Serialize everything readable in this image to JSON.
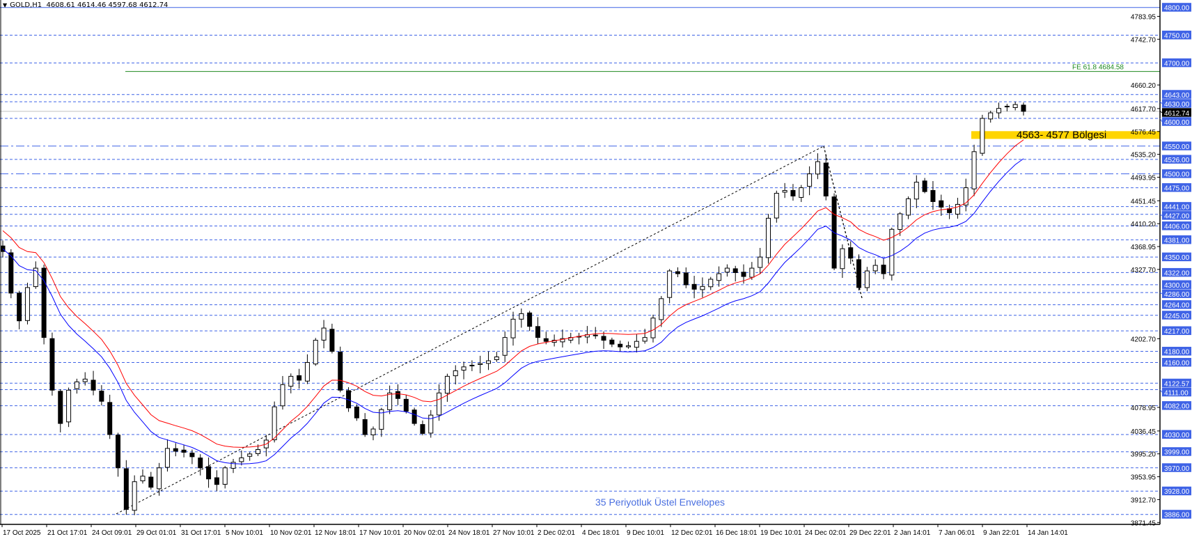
{
  "header": {
    "symbol": "GOLD,H1",
    "ohlc": "4608.61 4614.46 4597.68 4612.74",
    "menu_icon": "triangle-down-icon"
  },
  "colors": {
    "level_line": "#3f63e6",
    "label_bg": "#3f63e6",
    "label_text": "#ffffff",
    "ema_upper": "#ff0000",
    "ema_lower": "#0000ff",
    "fib": "#1f8a1f",
    "zone": "#ffd500",
    "current_price_bg": "#000000",
    "indicator_text": "#4a6fe0"
  },
  "chart_data": {
    "type": "candlestick",
    "symbol": "GOLD",
    "timeframe": "H1",
    "ylim": [
      3871.45,
      4800
    ],
    "grid": false,
    "x_tick_labels": [
      "17 Oct 2025",
      "21 Oct 17:01",
      "24 Oct 09:01",
      "29 Oct 01:01",
      "31 Oct 17:01",
      "5 Nov 10:01",
      "10 Nov 02:01",
      "12 Nov 18:01",
      "17 Nov 10:01",
      "20 Nov 02:01",
      "24 Nov 18:01",
      "27 Nov 10:01",
      "2 Dec 02:01",
      "4 Dec 18:01",
      "9 Dec 10:01",
      "12 Dec 02:01",
      "16 Dec 18:01",
      "19 Dec 10:01",
      "24 Dec 02:01",
      "29 Dec 22:01",
      "2 Jan 14:01",
      "7 Jan 06:01",
      "9 Jan 22:01",
      "14 Jan 14:01"
    ],
    "y_tick_labels": [
      "4783.95",
      "4742.70",
      "4660.20",
      "4617.70",
      "4576.45",
      "4535.20",
      "4493.95",
      "4451.45",
      "4410.20",
      "4368.95",
      "4327.70",
      "4202.70",
      "4078.95",
      "4036.45",
      "3995.20",
      "3953.95",
      "3912.70",
      "3871.45"
    ],
    "approx_closes": [
      4360,
      4285,
      4235,
      4295,
      4330,
      4205,
      4110,
      4050,
      4110,
      4125,
      4130,
      4110,
      4090,
      4030,
      3970,
      3895,
      3945,
      3955,
      3935,
      3970,
      4005,
      4000,
      3998,
      3990,
      3970,
      3950,
      3940,
      3970,
      3980,
      3988,
      3995,
      4003,
      4020,
      4080,
      4120,
      4135,
      4128,
      4160,
      4200,
      4222,
      4180,
      4110,
      4078,
      4060,
      4030,
      4040,
      4075,
      4105,
      4095,
      4072,
      4050,
      4032,
      4065,
      4105,
      4135,
      4145,
      4152,
      4155,
      4158,
      4163,
      4170,
      4205,
      4238,
      4248,
      4225,
      4205,
      4198,
      4200,
      4203,
      4205,
      4207,
      4210,
      4208,
      4200,
      4193,
      4188,
      4190,
      4198,
      4205,
      4240,
      4275,
      4325,
      4320,
      4300,
      4292,
      4297,
      4310,
      4320,
      4330,
      4322,
      4315,
      4330,
      4350,
      4420,
      4465,
      4470,
      4460,
      4475,
      4500,
      4522,
      4460,
      4330,
      4365,
      4348,
      4295,
      4325,
      4335,
      4320,
      4400,
      4428,
      4455,
      4485,
      4468,
      4450,
      4440,
      4430,
      4445,
      4475,
      4540,
      4600,
      4610,
      4618,
      4622,
      4625,
      4612.74
    ],
    "indicator": {
      "name": "35 Periyotluk Üstel Envelopes",
      "period": 35
    },
    "levels": [
      {
        "price": 4800.0,
        "label": "4800.00",
        "style": "solid"
      },
      {
        "price": 4750.0,
        "label": "4750.00",
        "style": "dash"
      },
      {
        "price": 4700.0,
        "label": "4700.00",
        "style": "dash"
      },
      {
        "price": 4643.0,
        "label": "4643.00",
        "style": "dash"
      },
      {
        "price": 4630.0,
        "label": "4630.00",
        "style": "dash"
      },
      {
        "price": 4600.0,
        "label": "4600.00",
        "style": "dash"
      },
      {
        "price": 4550.0,
        "label": "4550.00",
        "style": "dashdot"
      },
      {
        "price": 4526.0,
        "label": "4526.00",
        "style": "dash"
      },
      {
        "price": 4500.0,
        "label": "4500.00",
        "style": "dashdot"
      },
      {
        "price": 4475.0,
        "label": "4475.00",
        "style": "dash"
      },
      {
        "price": 4441.0,
        "label": "4441.00",
        "style": "dash"
      },
      {
        "price": 4427.0,
        "label": "4427.00",
        "style": "dash"
      },
      {
        "price": 4406.0,
        "label": "4406.00",
        "style": "dash"
      },
      {
        "price": 4381.0,
        "label": "4381.00",
        "style": "dash"
      },
      {
        "price": 4350.0,
        "label": "4350.00",
        "style": "dash"
      },
      {
        "price": 4322.0,
        "label": "4322.00",
        "style": "dash"
      },
      {
        "price": 4300.0,
        "label": "4300.00",
        "style": "dash"
      },
      {
        "price": 4286.0,
        "label": "4286.00",
        "style": "dash"
      },
      {
        "price": 4264.0,
        "label": "4264.00",
        "style": "dash"
      },
      {
        "price": 4245.0,
        "label": "4245.00",
        "style": "dash"
      },
      {
        "price": 4217.0,
        "label": "4217.00",
        "style": "dash"
      },
      {
        "price": 4180.0,
        "label": "4180.00",
        "style": "dash"
      },
      {
        "price": 4160.0,
        "label": "4160.00",
        "style": "dash"
      },
      {
        "price": 4122.57,
        "label": "4122.57",
        "style": "dash"
      },
      {
        "price": 4111.0,
        "label": "4111.00",
        "style": "dash"
      },
      {
        "price": 4082.0,
        "label": "4082.00",
        "style": "dash"
      },
      {
        "price": 4030.0,
        "label": "4030.00",
        "style": "dash"
      },
      {
        "price": 3999.0,
        "label": "3999.00",
        "style": "dash"
      },
      {
        "price": 3970.0,
        "label": "3970.00",
        "style": "dash"
      },
      {
        "price": 3928.0,
        "label": "3928.00",
        "style": "dash"
      },
      {
        "price": 3886.0,
        "label": "3886.00",
        "style": "dash"
      }
    ],
    "current_price": {
      "price": 4612.74,
      "label": "4612.74"
    },
    "fibonacci": {
      "price": 4684.58,
      "label": "FE 61.8 4684.58"
    },
    "zone": {
      "low": 4563,
      "high": 4577,
      "label": "4563- 4577 Bölgesi"
    },
    "trendlines": [
      {
        "from_price": 3887,
        "from_date": "29 Oct",
        "to_price": 4550,
        "to_date": "24 Dec"
      },
      {
        "from_price": 4550,
        "from_date": "24 Dec",
        "to_price": 4276,
        "to_date": "29 Dec"
      }
    ]
  }
}
